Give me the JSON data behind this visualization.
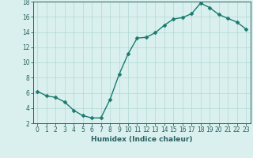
{
  "xlabel": "Humidex (Indice chaleur)",
  "ylabel": "",
  "x": [
    0,
    1,
    2,
    3,
    4,
    5,
    6,
    7,
    8,
    9,
    10,
    11,
    12,
    13,
    14,
    15,
    16,
    17,
    18,
    19,
    20,
    21,
    22,
    23
  ],
  "y": [
    6.2,
    5.6,
    5.4,
    4.8,
    3.7,
    3.0,
    2.7,
    2.7,
    5.1,
    8.4,
    11.1,
    13.2,
    13.3,
    13.9,
    14.9,
    15.7,
    15.9,
    16.4,
    17.8,
    17.2,
    16.3,
    15.8,
    15.3,
    14.4
  ],
  "line_color": "#1a7a6e",
  "marker": "D",
  "marker_size": 2.5,
  "bg_color": "#d9f0ef",
  "grid_color": "#b0d8d5",
  "ylim": [
    2,
    18
  ],
  "xlim": [
    -0.5,
    23.5
  ],
  "yticks": [
    2,
    4,
    6,
    8,
    10,
    12,
    14,
    16,
    18
  ],
  "xticks": [
    0,
    1,
    2,
    3,
    4,
    5,
    6,
    7,
    8,
    9,
    10,
    11,
    12,
    13,
    14,
    15,
    16,
    17,
    18,
    19,
    20,
    21,
    22,
    23
  ],
  "tick_label_fontsize": 5.5,
  "xlabel_fontsize": 6.5,
  "line_width": 1.0,
  "axis_color": "#2a6060",
  "tick_color": "#2a6060"
}
